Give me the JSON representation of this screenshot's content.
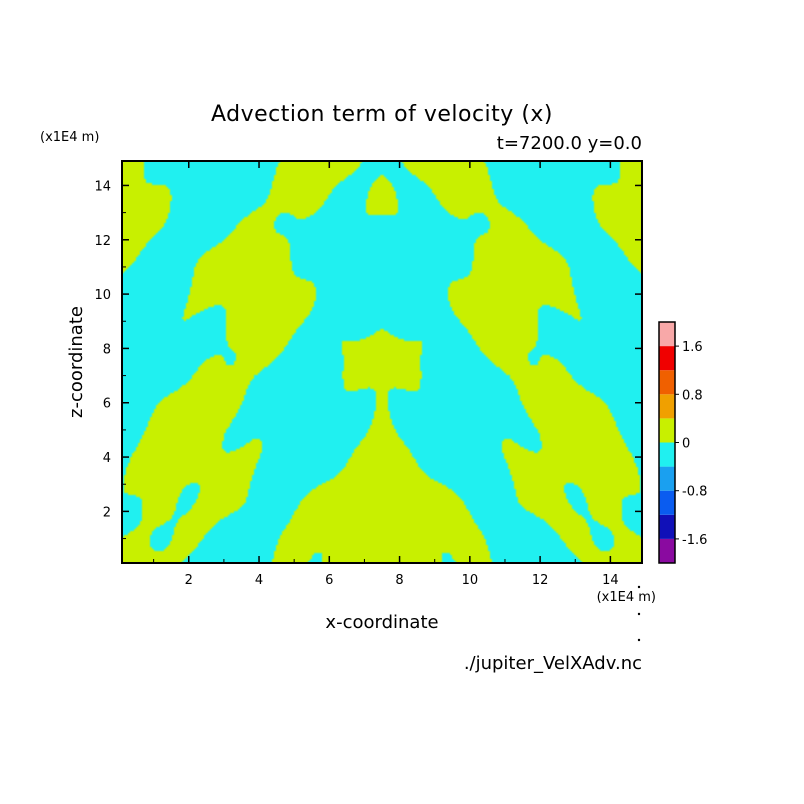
{
  "chart_data": {
    "type": "heatmap",
    "title": "Advection term of velocity (x)",
    "subtitle": "t=7200.0 y=0.0",
    "xlabel": "x-coordinate",
    "ylabel": "z-coordinate",
    "x_unit": "(x1E4 m)",
    "y_unit": "(x1E4 m)",
    "x_ticks": [
      2,
      4,
      6,
      8,
      10,
      12,
      14
    ],
    "y_ticks": [
      2,
      4,
      6,
      8,
      10,
      12,
      14
    ],
    "xlim": [
      0.1,
      14.9
    ],
    "ylim": [
      0.1,
      14.9
    ],
    "source": "./jupiter_VelXAdv.nc",
    "colorbar": {
      "levels": [
        -2.0,
        -1.6,
        -1.2,
        -0.8,
        -0.4,
        0,
        0.4,
        0.8,
        1.2,
        1.6,
        2.0
      ],
      "colors": [
        "#8a0aa0",
        "#1010b8",
        "#0a5cf0",
        "#1aa0f0",
        "#20f0f0",
        "#c8f000",
        "#f0a000",
        "#f06000",
        "#f00000",
        "#f8a8a8"
      ],
      "labels": [
        "-1.6",
        "-0.8",
        "0",
        "0.8",
        "1.6"
      ],
      "label_values": [
        -1.6,
        -0.8,
        0,
        0.8,
        1.6
      ]
    },
    "field_colors": {
      "negative": "#20f0f0",
      "positive": "#c8f000"
    }
  }
}
